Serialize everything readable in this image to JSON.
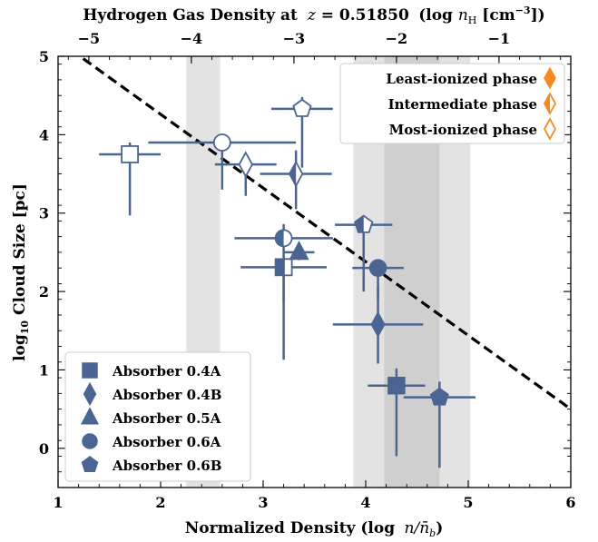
{
  "chart_data": {
    "type": "scatter",
    "title_top": "Hydrogen Gas Density at",
    "title_top_z": "z = 0.51850",
    "title_top_unit": "(log n_H [cm^-3])",
    "xlabel_main": "Normalized Density (log",
    "xlabel_math": "n/n̄",
    "ylabel_main": "log",
    "ylabel_sub": "10",
    "ylabel_rest": " Cloud Size [pc]",
    "xlim": [
      1,
      6
    ],
    "ylim": [
      -0.5,
      5
    ],
    "x_ticks": [
      1,
      2,
      3,
      4,
      5,
      6
    ],
    "x_tick_labels": [
      "1",
      "2",
      "3",
      "4",
      "5",
      "6"
    ],
    "y_ticks": [
      0,
      1,
      2,
      3,
      4,
      5
    ],
    "y_tick_labels": [
      "0",
      "1",
      "2",
      "3",
      "4",
      "5"
    ],
    "top_ticks": [
      -5,
      -4,
      -3,
      -2,
      -1
    ],
    "top_tick_labels": [
      "−5",
      "−4",
      "−3",
      "−2",
      "−1"
    ],
    "top_axis_offset": 6.3,
    "bands": [
      {
        "x0": 2.25,
        "x1": 2.58,
        "color": "#e3e3e3"
      },
      {
        "x0": 3.88,
        "x1": 5.02,
        "color": "#e3e3e3"
      },
      {
        "x0": 4.18,
        "x1": 4.72,
        "color": "#cfcfcf"
      }
    ],
    "dashed_line": {
      "x": [
        1.0,
        6.0
      ],
      "y": [
        5.2,
        0.5
      ]
    },
    "series": [
      {
        "name": "Absorber 0.4A",
        "marker": "square",
        "points": [
          {
            "phase": "least",
            "x": 4.3,
            "y": 0.8,
            "xerr": 0.28,
            "yerr_low": 0.9,
            "yerr_high": 0.22
          },
          {
            "phase": "intermediate",
            "x": 3.2,
            "y": 2.31,
            "xerr": 0.42,
            "yerr_low": 0.45,
            "yerr_high": 0.1
          },
          {
            "phase": "most",
            "x": 1.7,
            "y": 3.75,
            "xerr": 0.3,
            "yerr_low": 0.78,
            "yerr_high": 0.15
          }
        ]
      },
      {
        "name": "Absorber 0.4B",
        "marker": "diamond",
        "points": [
          {
            "phase": "least",
            "x": 4.12,
            "y": 1.58,
            "xerr": 0.44,
            "yerr_low": 0.5,
            "yerr_high": 0.5
          },
          {
            "phase": "intermediate",
            "x": 3.32,
            "y": 3.5,
            "xerr": 0.35,
            "yerr_low": 0.45,
            "yerr_high": 0.3
          },
          {
            "phase": "most",
            "x": 2.83,
            "y": 3.62,
            "xerr": 0.3,
            "yerr_low": 0.4,
            "yerr_high": 0.05
          }
        ]
      },
      {
        "name": "Absorber 0.5A",
        "marker": "triangle",
        "points": [
          {
            "phase": "least",
            "x": 3.35,
            "y": 2.5,
            "xerr": 0.15,
            "yerr_low": 0.1,
            "yerr_high": 0.1
          }
        ]
      },
      {
        "name": "Absorber 0.6A",
        "marker": "circle",
        "points": [
          {
            "phase": "least",
            "x": 4.12,
            "y": 2.3,
            "xerr": 0.25,
            "yerr_low": 0.4,
            "yerr_high": 0.1
          },
          {
            "phase": "intermediate",
            "x": 3.2,
            "y": 2.68,
            "xerr": 0.48,
            "yerr_low": 1.55,
            "yerr_high": 0.18
          },
          {
            "phase": "most",
            "x": 2.6,
            "y": 3.9,
            "xerr": 0.72,
            "yerr_low": 0.6,
            "yerr_high": 0.1
          }
        ]
      },
      {
        "name": "Absorber 0.6B",
        "marker": "pentagon",
        "points": [
          {
            "phase": "least",
            "x": 4.72,
            "y": 0.65,
            "xerr": 0.35,
            "yerr_low": 0.9,
            "yerr_high": 0.2
          },
          {
            "phase": "intermediate",
            "x": 3.98,
            "y": 2.85,
            "xerr": 0.28,
            "yerr_low": 0.85,
            "yerr_high": 0.1
          },
          {
            "phase": "most",
            "x": 3.38,
            "y": 4.33,
            "xerr": 0.3,
            "yerr_low": 0.75,
            "yerr_high": 0.15
          }
        ]
      }
    ],
    "phase_legend": {
      "location": "top-right",
      "entries": [
        {
          "label": "Least-ionized phase",
          "phase": "least"
        },
        {
          "label": "Intermediate phase",
          "phase": "intermediate"
        },
        {
          "label": "Most-ionized phase",
          "phase": "most"
        }
      ]
    },
    "absorber_legend": {
      "location": "bottom-left",
      "entries": [
        {
          "label": "Absorber 0.4A",
          "marker": "square"
        },
        {
          "label": "Absorber 0.4B",
          "marker": "diamond"
        },
        {
          "label": "Absorber 0.5A",
          "marker": "triangle"
        },
        {
          "label": "Absorber 0.6A",
          "marker": "circle"
        },
        {
          "label": "Absorber 0.6B",
          "marker": "pentagon"
        }
      ]
    },
    "colors": {
      "marker": "#4a6591",
      "phase_legend": "#f5891f",
      "dashed": "#000000"
    }
  }
}
